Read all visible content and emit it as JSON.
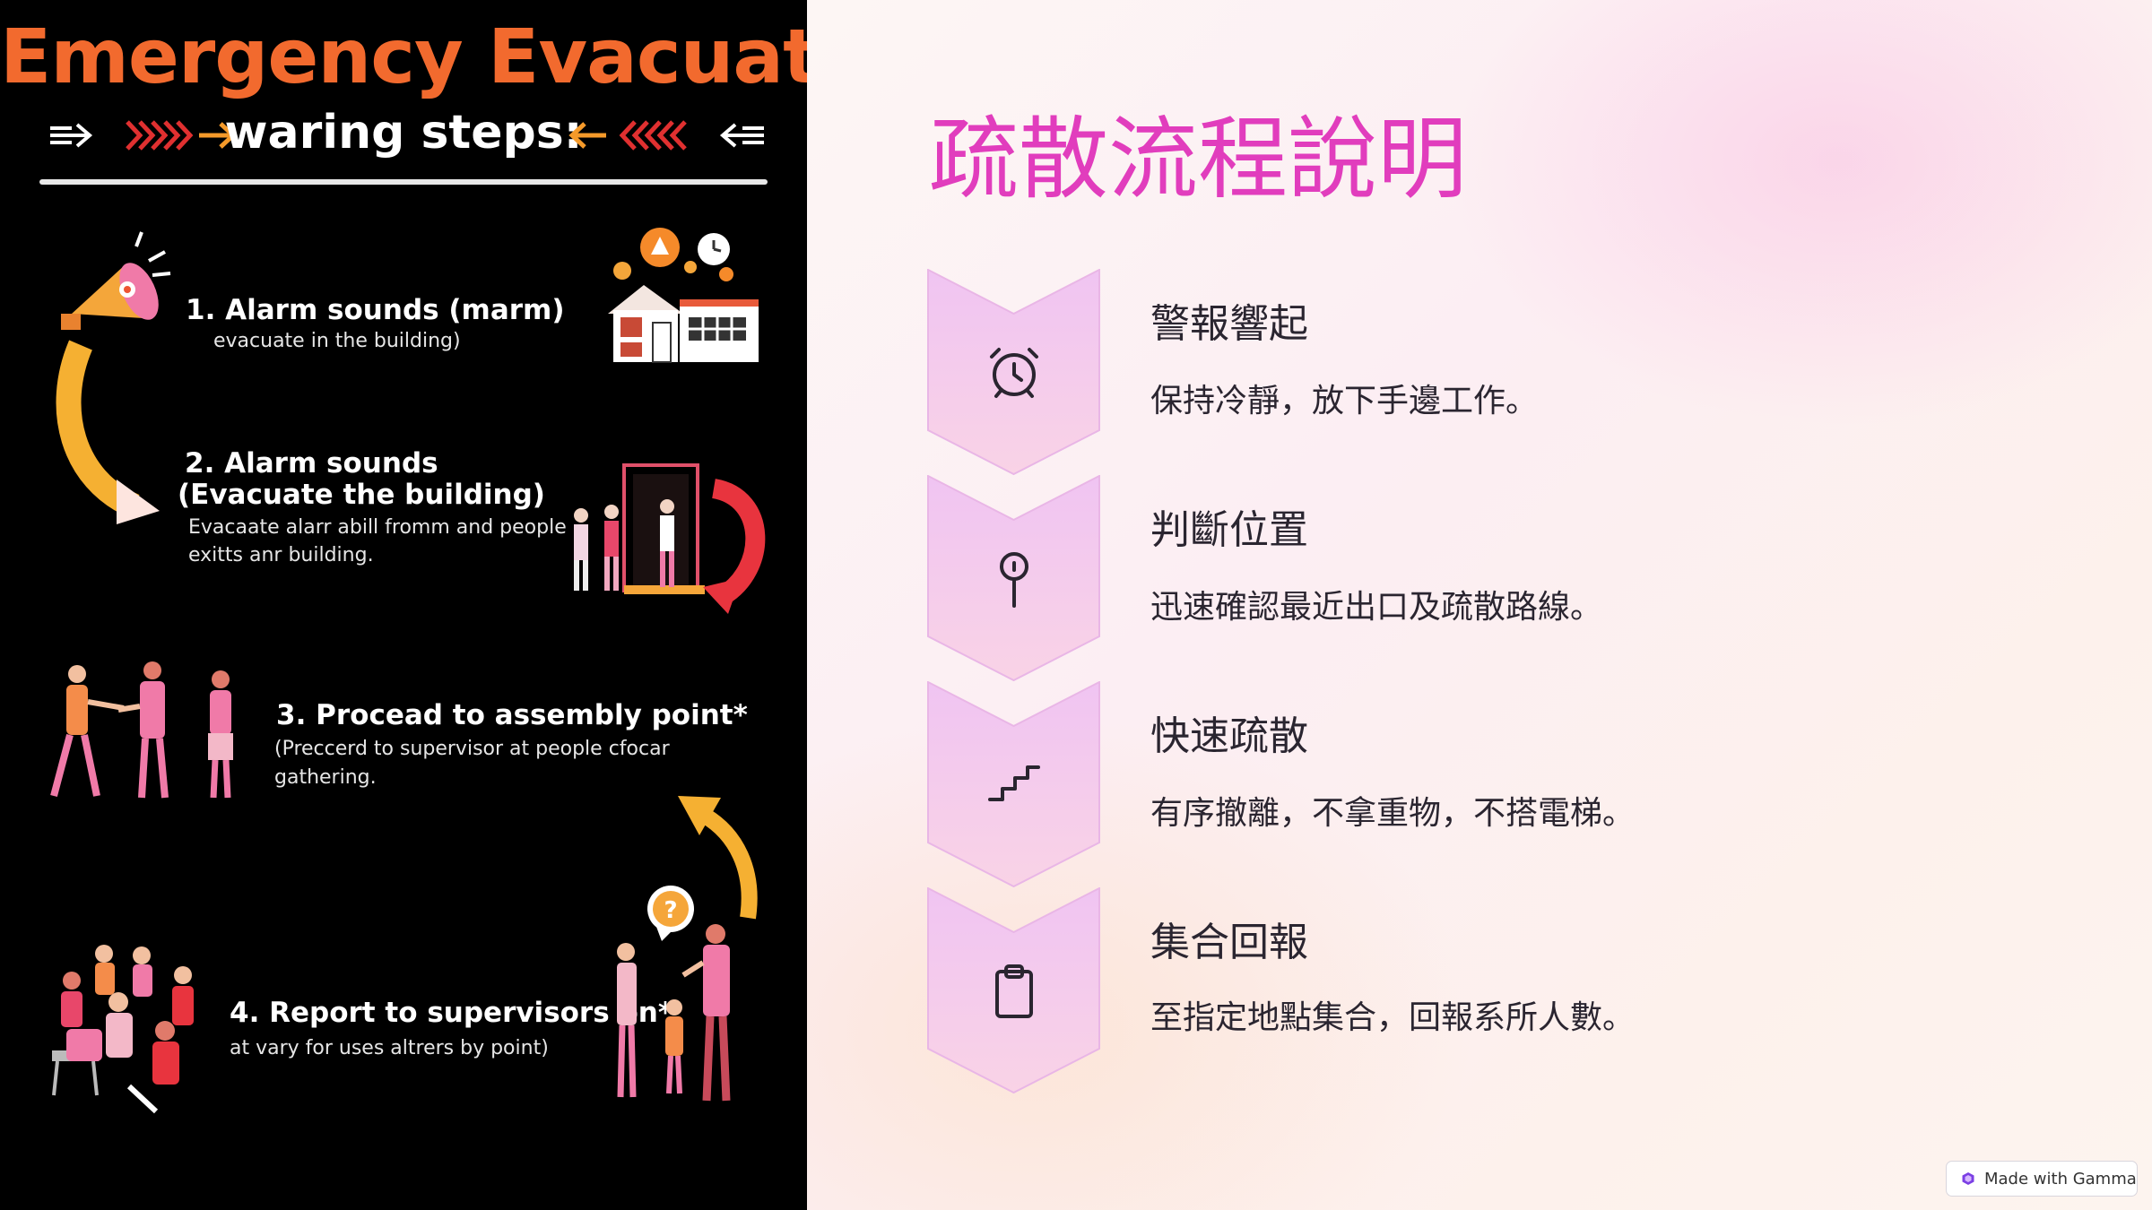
{
  "poster": {
    "title": "Emergency Evacuation",
    "subtitle": "waring steps:",
    "steps": [
      {
        "title": "1. Alarm sounds (marm)",
        "desc_lines": [
          "evacuate in the building)"
        ]
      },
      {
        "title_lines": [
          "2. Alarm sounds",
          "(Evacuate the building)"
        ],
        "desc_lines": [
          "Evacaate alarr abill fromm and people",
          "exitts anr building."
        ]
      },
      {
        "title": "3. Procead to assembly point*",
        "desc_lines": [
          "(Preccerd to supervisor at people cfocar",
          "gathering."
        ]
      },
      {
        "title": "4. Report to supervisors on*",
        "desc_lines": [
          "at vary for uses altrers by point)"
        ]
      }
    ]
  },
  "slide": {
    "title": "疏散流程說明",
    "items": [
      {
        "icon": "alarm-clock-icon",
        "heading": "警報響起",
        "desc": "保持冷靜，放下手邊工作。"
      },
      {
        "icon": "map-pin-icon",
        "heading": "判斷位置",
        "desc": "迅速確認最近出口及疏散路線。"
      },
      {
        "icon": "stairs-icon",
        "heading": "快速疏散",
        "desc": "有序撤離，不拿重物，不搭電梯。"
      },
      {
        "icon": "clipboard-icon",
        "heading": "集合回報",
        "desc": "至指定地點集合，回報系所人數。"
      }
    ]
  },
  "badge": {
    "label": "Made with Gamma",
    "icon": "gamma-logo-icon"
  },
  "colors": {
    "slide_title": "#e13dbd",
    "poster_title": "#f26a2e",
    "chevron_top": "#f2c6f0",
    "chevron_bottom": "#f8d2e6",
    "text": "#2a2530"
  }
}
